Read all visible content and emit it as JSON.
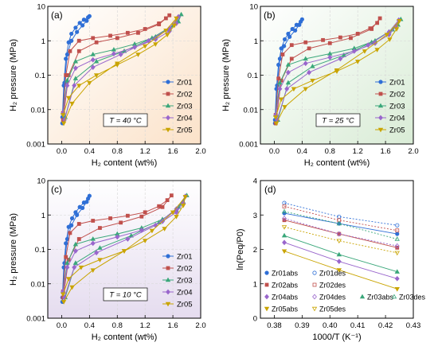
{
  "colors": {
    "Zr01": "#2f6fd6",
    "Zr02": "#c0504d",
    "Zr03": "#3aa77a",
    "Zr04": "#9966cc",
    "Zr05": "#c9a400"
  },
  "chart_data": [
    {
      "type": "line",
      "label": "(a)",
      "temperature_note": "T = 40 °C",
      "xlabel": "H₂ content (wt%)",
      "ylabel": "H₂ pressure (MPa)",
      "xlim": [
        -0.2,
        2.0
      ],
      "ylim": [
        0.001,
        10
      ],
      "yscale": "log",
      "xticks": [
        "0.0",
        "0.4",
        "0.8",
        "1.2",
        "1.6",
        "2.0"
      ],
      "yticks": [
        "0.001",
        "0.01",
        "0.1",
        "1",
        "10"
      ],
      "legend": [
        "Zr01",
        "Zr02",
        "Zr03",
        "Zr04",
        "Zr05"
      ],
      "legend_position": "bottom-right",
      "grid": true,
      "series": [
        {
          "name": "Zr01",
          "x": [
            0.01,
            0.03,
            0.06,
            0.1,
            0.14,
            0.2,
            0.26,
            0.32,
            0.38,
            0.4,
            0.36,
            0.3,
            0.22,
            0.14,
            0.08,
            0.04,
            0.01
          ],
          "y": [
            0.006,
            0.05,
            0.3,
            0.9,
            1.6,
            2.4,
            3.3,
            4.1,
            4.8,
            5.2,
            3.8,
            2.8,
            1.8,
            1.0,
            0.4,
            0.06,
            0.004
          ]
        },
        {
          "name": "Zr02",
          "x": [
            0.02,
            0.06,
            0.12,
            0.25,
            0.45,
            0.7,
            0.95,
            1.2,
            1.4,
            1.5,
            1.55,
            1.4,
            1.1,
            0.8,
            0.5,
            0.25,
            0.1,
            0.02
          ],
          "y": [
            0.008,
            0.1,
            0.5,
            1.0,
            1.2,
            1.4,
            1.7,
            2.2,
            3.2,
            4.5,
            5.5,
            3.0,
            1.7,
            1.2,
            0.9,
            0.5,
            0.1,
            0.005
          ]
        },
        {
          "name": "Zr03",
          "x": [
            0.02,
            0.08,
            0.2,
            0.45,
            0.75,
            1.05,
            1.35,
            1.55,
            1.68,
            1.72,
            1.6,
            1.3,
            0.9,
            0.5,
            0.2,
            0.05
          ],
          "y": [
            0.008,
            0.07,
            0.25,
            0.4,
            0.55,
            0.8,
            1.3,
            2.2,
            3.6,
            5.8,
            2.8,
            1.2,
            0.5,
            0.25,
            0.08,
            0.006
          ]
        },
        {
          "name": "Zr04",
          "x": [
            0.02,
            0.08,
            0.2,
            0.45,
            0.75,
            1.05,
            1.35,
            1.55,
            1.65,
            1.68,
            1.55,
            1.25,
            0.85,
            0.45,
            0.18,
            0.04
          ],
          "y": [
            0.008,
            0.05,
            0.16,
            0.28,
            0.42,
            0.65,
            1.1,
            1.9,
            3.2,
            5.0,
            2.3,
            1.0,
            0.4,
            0.17,
            0.05,
            0.005
          ]
        },
        {
          "name": "Zr05",
          "x": [
            0.02,
            0.1,
            0.25,
            0.5,
            0.8,
            1.1,
            1.35,
            1.52,
            1.62,
            1.65,
            1.5,
            1.2,
            0.8,
            0.4,
            0.15,
            0.03
          ],
          "y": [
            0.007,
            0.022,
            0.05,
            0.1,
            0.2,
            0.4,
            0.8,
            1.5,
            2.8,
            4.5,
            2.0,
            0.7,
            0.22,
            0.06,
            0.015,
            0.004
          ]
        }
      ]
    },
    {
      "type": "line",
      "label": "(b)",
      "temperature_note": "T = 25 °C",
      "xlabel": "H₂ content (wt%)",
      "ylabel": "H₂ pressure (MPa)",
      "xlim": [
        -0.2,
        2.0
      ],
      "ylim": [
        0.001,
        10
      ],
      "yscale": "log",
      "xticks": [
        "0.0",
        "0.4",
        "0.8",
        "1.2",
        "1.6",
        "2.0"
      ],
      "yticks": [
        "0.001",
        "0.01",
        "0.1",
        "1",
        "10"
      ],
      "legend": [
        "Zr01",
        "Zr02",
        "Zr03",
        "Zr04",
        "Zr05"
      ],
      "legend_position": "bottom-right",
      "grid": true,
      "series": [
        {
          "name": "Zr01",
          "x": [
            0.01,
            0.03,
            0.06,
            0.1,
            0.15,
            0.2,
            0.26,
            0.32,
            0.38,
            0.4,
            0.36,
            0.3,
            0.22,
            0.14,
            0.08,
            0.04,
            0.01
          ],
          "y": [
            0.005,
            0.04,
            0.2,
            0.6,
            1.1,
            1.6,
            2.2,
            2.9,
            3.6,
            4.2,
            2.9,
            2.0,
            1.3,
            0.7,
            0.3,
            0.05,
            0.004
          ]
        },
        {
          "name": "Zr02",
          "x": [
            0.02,
            0.06,
            0.12,
            0.25,
            0.45,
            0.7,
            0.95,
            1.2,
            1.38,
            1.48,
            1.52,
            1.4,
            1.1,
            0.8,
            0.5,
            0.25,
            0.1,
            0.02
          ],
          "y": [
            0.007,
            0.08,
            0.4,
            0.75,
            0.9,
            1.05,
            1.25,
            1.6,
            2.3,
            3.3,
            4.5,
            2.2,
            1.2,
            0.85,
            0.6,
            0.3,
            0.07,
            0.004
          ]
        },
        {
          "name": "Zr03",
          "x": [
            0.02,
            0.08,
            0.2,
            0.45,
            0.8,
            1.15,
            1.45,
            1.65,
            1.78,
            1.82,
            1.7,
            1.4,
            1.0,
            0.55,
            0.2,
            0.05
          ],
          "y": [
            0.007,
            0.06,
            0.2,
            0.3,
            0.42,
            0.6,
            1.0,
            1.8,
            2.9,
            4.2,
            2.1,
            0.9,
            0.38,
            0.18,
            0.06,
            0.005
          ]
        },
        {
          "name": "Zr04",
          "x": [
            0.02,
            0.08,
            0.2,
            0.45,
            0.8,
            1.15,
            1.45,
            1.65,
            1.75,
            1.79,
            1.65,
            1.35,
            0.95,
            0.5,
            0.18,
            0.04
          ],
          "y": [
            0.007,
            0.04,
            0.12,
            0.22,
            0.33,
            0.5,
            0.85,
            1.5,
            2.6,
            4.0,
            1.8,
            0.75,
            0.3,
            0.12,
            0.04,
            0.005
          ]
        },
        {
          "name": "Zr05",
          "x": [
            0.02,
            0.1,
            0.28,
            0.55,
            0.9,
            1.2,
            1.48,
            1.66,
            1.76,
            1.8,
            1.62,
            1.3,
            0.9,
            0.45,
            0.15,
            0.03
          ],
          "y": [
            0.006,
            0.02,
            0.04,
            0.07,
            0.13,
            0.25,
            0.55,
            1.1,
            2.2,
            3.8,
            1.5,
            0.5,
            0.14,
            0.04,
            0.012,
            0.004
          ]
        }
      ]
    },
    {
      "type": "line",
      "label": "(c)",
      "temperature_note": "T = 10 °C",
      "xlabel": "H₂ content (wt%)",
      "ylabel": "H₂ pressure (MPa)",
      "xlim": [
        -0.2,
        2.0
      ],
      "ylim": [
        0.001,
        10
      ],
      "yscale": "log",
      "xticks": [
        "0.0",
        "0.4",
        "0.8",
        "1.2",
        "1.6",
        "2.0"
      ],
      "yticks": [
        "0.001",
        "0.01",
        "0.1",
        "1",
        "10"
      ],
      "legend": [
        "Zr01",
        "Zr02",
        "Zr03",
        "Zr04",
        "Zr05"
      ],
      "legend_position": "bottom-right",
      "grid": true,
      "series": [
        {
          "name": "Zr01",
          "x": [
            0.01,
            0.03,
            0.06,
            0.1,
            0.15,
            0.2,
            0.26,
            0.32,
            0.38,
            0.4,
            0.36,
            0.3,
            0.22,
            0.14,
            0.08,
            0.04,
            0.01
          ],
          "y": [
            0.004,
            0.03,
            0.15,
            0.45,
            0.8,
            1.2,
            1.7,
            2.3,
            3.0,
            3.6,
            2.4,
            1.6,
            1.0,
            0.5,
            0.2,
            0.04,
            0.003
          ]
        },
        {
          "name": "Zr02",
          "x": [
            0.02,
            0.06,
            0.12,
            0.25,
            0.45,
            0.7,
            0.95,
            1.2,
            1.4,
            1.52,
            1.58,
            1.45,
            1.15,
            0.85,
            0.55,
            0.25,
            0.1,
            0.02
          ],
          "y": [
            0.006,
            0.06,
            0.3,
            0.55,
            0.68,
            0.8,
            0.95,
            1.2,
            1.8,
            2.7,
            3.7,
            1.7,
            0.9,
            0.6,
            0.42,
            0.2,
            0.05,
            0.004
          ]
        },
        {
          "name": "Zr03",
          "x": [
            0.02,
            0.08,
            0.2,
            0.45,
            0.8,
            1.15,
            1.45,
            1.65,
            1.75,
            1.8,
            1.68,
            1.4,
            1.0,
            0.55,
            0.2,
            0.05
          ],
          "y": [
            0.006,
            0.04,
            0.14,
            0.2,
            0.28,
            0.42,
            0.75,
            1.4,
            2.4,
            3.7,
            1.7,
            0.6,
            0.25,
            0.11,
            0.04,
            0.004
          ]
        },
        {
          "name": "Zr04",
          "x": [
            0.02,
            0.08,
            0.2,
            0.45,
            0.8,
            1.15,
            1.45,
            1.65,
            1.75,
            1.78,
            1.65,
            1.35,
            0.95,
            0.5,
            0.18,
            0.04
          ],
          "y": [
            0.006,
            0.03,
            0.09,
            0.15,
            0.23,
            0.36,
            0.65,
            1.2,
            2.2,
            3.5,
            1.5,
            0.5,
            0.2,
            0.08,
            0.03,
            0.004
          ]
        },
        {
          "name": "Zr05",
          "x": [
            0.02,
            0.1,
            0.28,
            0.55,
            0.9,
            1.2,
            1.48,
            1.65,
            1.75,
            1.78,
            1.6,
            1.3,
            0.9,
            0.45,
            0.15,
            0.03
          ],
          "y": [
            0.005,
            0.014,
            0.03,
            0.05,
            0.09,
            0.18,
            0.4,
            0.9,
            1.9,
            3.4,
            1.2,
            0.35,
            0.09,
            0.025,
            0.008,
            0.003
          ]
        }
      ]
    },
    {
      "type": "scatter",
      "label": "(d)",
      "xlabel": "1000/T (K⁻¹)",
      "ylabel": "ln(Peq/P0)",
      "xlim": [
        0.375,
        0.43
      ],
      "ylim": [
        0,
        4
      ],
      "xticks": [
        "0.38",
        "0.39",
        "0.40",
        "0.41",
        "0.42",
        "0.43"
      ],
      "yticks": [
        "0",
        "1",
        "2",
        "3",
        "4"
      ],
      "legend": [
        "Zr01abs",
        "Zr01des",
        "Zr02abs",
        "Zr02des",
        "Zr03abs",
        "Zr03des",
        "Zr04abs",
        "Zr04des",
        "Zr05abs",
        "Zr05des"
      ],
      "legend_position": "bottom",
      "grid": false,
      "x": [
        0.3836,
        0.4033,
        0.4242
      ],
      "series": [
        {
          "name": "Zr01abs",
          "values": [
            3.05,
            2.75,
            2.45
          ],
          "solid": true
        },
        {
          "name": "Zr01des",
          "values": [
            3.35,
            2.95,
            2.7
          ],
          "solid": false
        },
        {
          "name": "Zr02abs",
          "values": [
            2.85,
            2.45,
            2.05
          ],
          "solid": true
        },
        {
          "name": "Zr02des",
          "values": [
            3.25,
            2.85,
            2.55
          ],
          "solid": false
        },
        {
          "name": "Zr03abs",
          "values": [
            2.4,
            1.85,
            1.35
          ],
          "solid": true
        },
        {
          "name": "Zr03des",
          "values": [
            3.1,
            2.75,
            2.3
          ],
          "solid": false
        },
        {
          "name": "Zr04abs",
          "values": [
            2.2,
            1.65,
            1.15
          ],
          "solid": true
        },
        {
          "name": "Zr04des",
          "values": [
            2.9,
            2.45,
            2.1
          ],
          "solid": false
        },
        {
          "name": "Zr05abs",
          "values": [
            1.95,
            1.4,
            0.85
          ],
          "solid": true
        },
        {
          "name": "Zr05des",
          "values": [
            2.65,
            2.25,
            1.9
          ],
          "solid": false
        }
      ]
    }
  ]
}
